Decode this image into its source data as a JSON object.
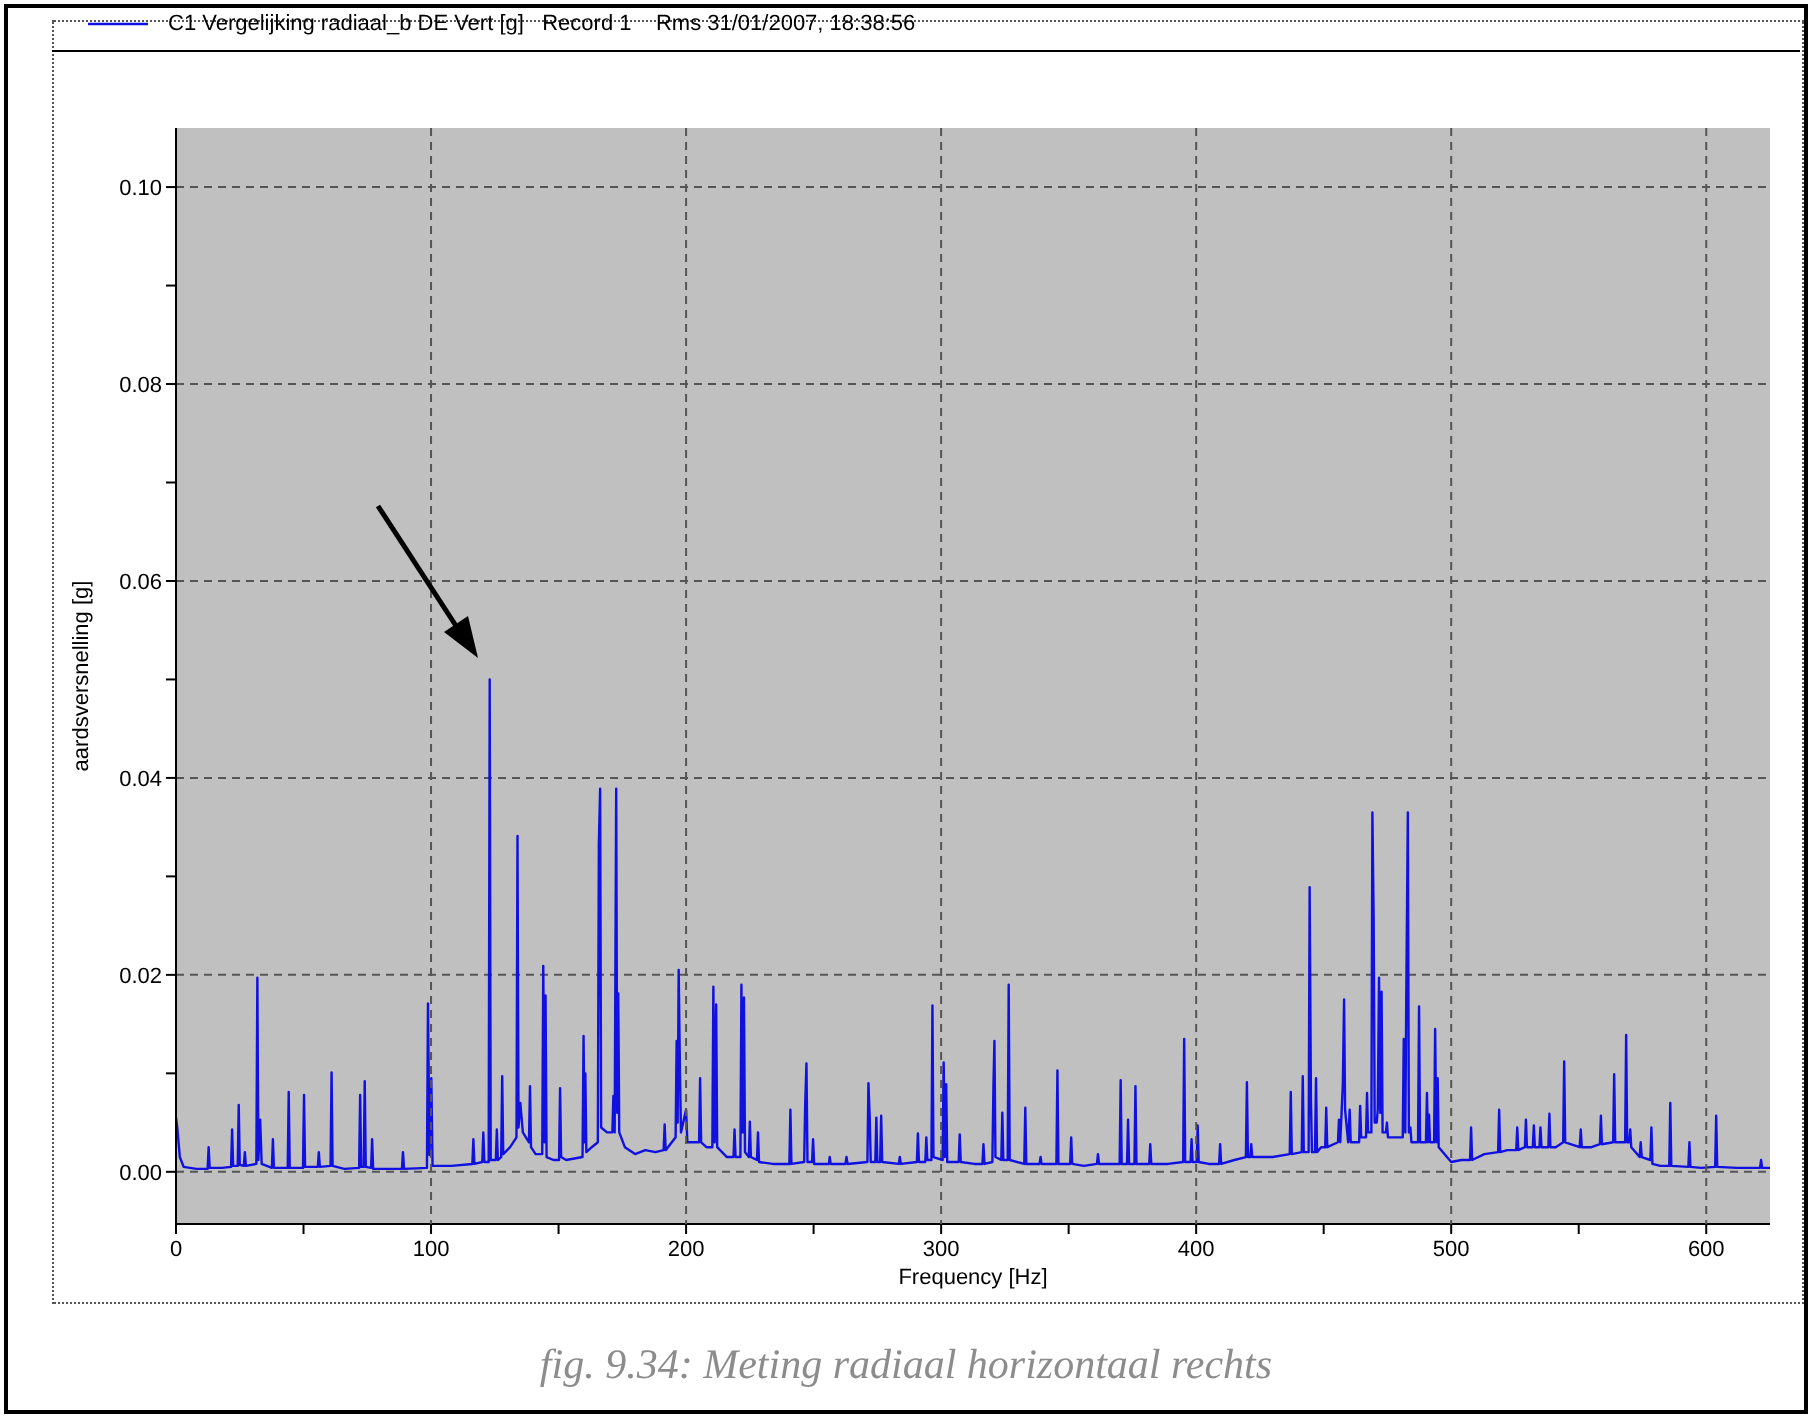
{
  "chart_data": {
    "type": "line",
    "xlabel": "Frequency [Hz]",
    "ylabel": "aardsversnelling [g]",
    "annotations": [
      "fig. 9.34: Meting radiaal horizontaal rechts"
    ],
    "xlim": [
      0,
      625
    ],
    "ylim": [
      -0.0053,
      0.106
    ],
    "xticks": [
      0,
      {
        "value": 50,
        "label": null
      },
      100,
      {
        "value": 150,
        "label": null
      },
      200,
      {
        "value": 250,
        "label": null
      },
      300,
      {
        "value": 350,
        "label": null
      },
      400,
      {
        "value": 450,
        "label": null
      },
      500,
      {
        "value": 550,
        "label": null
      },
      600
    ],
    "yticks": [
      {
        "value": 0,
        "label": "0.00"
      },
      {
        "value": 0.01,
        "label": null
      },
      {
        "value": 0.02,
        "label": "0.02"
      },
      {
        "value": 0.03,
        "label": null
      },
      {
        "value": 0.04,
        "label": "0.04"
      },
      {
        "value": 0.05,
        "label": null
      },
      {
        "value": 0.06,
        "label": "0.06"
      },
      {
        "value": 0.07,
        "label": null
      },
      {
        "value": 0.08,
        "label": "0.08"
      },
      {
        "value": 0.09,
        "label": null
      },
      {
        "value": 0.1,
        "label": "0.10"
      }
    ],
    "grid": true,
    "legend": "top left",
    "marker": "none",
    "line_style": "solid",
    "series": [
      {
        "name": "C1 Vergelijking radiaal_b DE Vert [g]   Record 1    Rms 31/01/2007, 18:38:56",
        "color": "#1010e0",
        "x": [
          0,
          0.5,
          1.5,
          3,
          8,
          12.4,
          12.8,
          13.2,
          18,
          21.6,
          22,
          22.4,
          24.2,
          24.6,
          25,
          26.6,
          27,
          27.4,
          31.5,
          31.9,
          32.3,
          33,
          33.6,
          37.6,
          38,
          38.4,
          43.8,
          44.2,
          44.6,
          49.8,
          50.2,
          50.6,
          55.6,
          56,
          56.4,
          60.6,
          61,
          61.4,
          66,
          71.8,
          72.2,
          72.6,
          73.6,
          74,
          74.4,
          76.5,
          76.9,
          77.3,
          85,
          88.6,
          89,
          89.4,
          98.4,
          98.8,
          99.4,
          100.1,
          100.6,
          108,
          116.2,
          116.6,
          117,
          120.1,
          120.5,
          120.9,
          122.6,
          123,
          123.4,
          125.4,
          125.8,
          126.2,
          127.5,
          127.9,
          128.3,
          131,
          133.5,
          133.9,
          134.3,
          135,
          136,
          138.4,
          138.8,
          139.2,
          141,
          143.6,
          144,
          144.5,
          144.9,
          145.3,
          148,
          150.2,
          150.6,
          151,
          153,
          159.4,
          159.8,
          160.2,
          160.5,
          160.9,
          163,
          165.4,
          165.8,
          166.3,
          166.7,
          169,
          171.1,
          171.5,
          172,
          172.6,
          173,
          173.4,
          173.8,
          176,
          180,
          184,
          188,
          191.2,
          191.6,
          192,
          195.9,
          196.3,
          196.7,
          197.1,
          197.6,
          198,
          200,
          200.5,
          203,
          205.1,
          205.5,
          205.9,
          208,
          210.3,
          210.7,
          211.2,
          211.8,
          212.2,
          216,
          218.6,
          219,
          219.4,
          221.3,
          221.7,
          222.2,
          222.7,
          223.1,
          224.6,
          225,
          225.4,
          227.8,
          228.2,
          228.6,
          234,
          240.5,
          240.9,
          241.3,
          246.3,
          246.7,
          247.2,
          247.6,
          249.4,
          249.8,
          250.2,
          256,
          256.3,
          256.7,
          262.5,
          262.9,
          263.3,
          271.1,
          271.5,
          272,
          272.4,
          274.2,
          274.6,
          275,
          276.1,
          276.5,
          276.9,
          283.4,
          283.8,
          284.2,
          290.5,
          290.9,
          291.3,
          293.8,
          294.2,
          294.6,
          296.2,
          296.6,
          297,
          300.6,
          301,
          301.5,
          302,
          302.4,
          306.9,
          307.3,
          307.7,
          313,
          316.2,
          316.6,
          317,
          320.1,
          320.5,
          320.9,
          321.3,
          323.6,
          324,
          324.4,
          326.1,
          326.5,
          326.9,
          332.6,
          333,
          333.4,
          338.6,
          339,
          339.4,
          345.2,
          345.6,
          346,
          350.6,
          351,
          351.4,
          356,
          361.1,
          361.5,
          361.9,
          370,
          370.4,
          370.8,
          372.9,
          373.3,
          373.7,
          375.8,
          376.2,
          376.6,
          381.6,
          382,
          382.4,
          389,
          394.9,
          395.3,
          395.7,
          397.8,
          398.2,
          398.6,
          400.2,
          400.6,
          401,
          405,
          409,
          409.4,
          409.8,
          415,
          419.5,
          419.9,
          420.3,
          421.2,
          421.6,
          422,
          430,
          436.7,
          437.1,
          437.5,
          441.4,
          441.8,
          442.2,
          444.1,
          444.5,
          445,
          445.4,
          446.6,
          447,
          447.4,
          449,
          450.6,
          451,
          451.4,
          455.6,
          456,
          456.5,
          457.5,
          458,
          458.4,
          459.6,
          460.2,
          460.6,
          463.9,
          464.3,
          464.7,
          466.6,
          467,
          467.4,
          468.7,
          469.1,
          469.6,
          470,
          470.8,
          471.2,
          471.7,
          472.2,
          472.7,
          473.1,
          474.4,
          474.8,
          475.2,
          478,
          481,
          481.4,
          482,
          482.4,
          483,
          483.4,
          484,
          484.4,
          487,
          487.4,
          487.8,
          490.1,
          490.5,
          490.9,
          491.3,
          491.7,
          493.3,
          493.7,
          494.2,
          494.7,
          495.1,
          500,
          504,
          507.4,
          507.8,
          508.2,
          513,
          518.4,
          518.8,
          519.2,
          522,
          525.5,
          525.9,
          526.3,
          528.9,
          529.3,
          529.7,
          532,
          532.4,
          532.8,
          534.6,
          535,
          535.4,
          538.1,
          538.5,
          538.9,
          541,
          543.9,
          544.3,
          544.7,
          550.4,
          550.8,
          551.2,
          555,
          558.3,
          558.7,
          559.1,
          563.5,
          563.9,
          564.3,
          568.2,
          568.6,
          569,
          569.8,
          570.2,
          570.6,
          573.9,
          574.3,
          574.7,
          578.1,
          578.5,
          578.9,
          582,
          585.5,
          585.9,
          586.3,
          593,
          593.4,
          593.8,
          598,
          603.5,
          603.9,
          604.3,
          612,
          621.1,
          621.5,
          621.9,
          625
        ],
        "values": [
          0.0055,
          0.0045,
          0.0015,
          0.0005,
          0.0003,
          0.0003,
          0.0025,
          0.0004,
          0.0004,
          0.0005,
          0.0043,
          0.0006,
          0.0006,
          0.0068,
          0.0007,
          0.0006,
          0.002,
          0.0006,
          0.0008,
          0.0197,
          0.0012,
          0.0053,
          0.0008,
          0.0004,
          0.0033,
          0.0004,
          0.0004,
          0.0081,
          0.0004,
          0.0004,
          0.0078,
          0.0005,
          0.0005,
          0.002,
          0.0005,
          0.0006,
          0.0101,
          0.0006,
          0.0003,
          0.0004,
          0.0078,
          0.0005,
          0.0005,
          0.0092,
          0.0005,
          0.0004,
          0.0033,
          0.0003,
          0.0003,
          0.0003,
          0.002,
          0.0003,
          0.0004,
          0.0171,
          0.0017,
          0.0095,
          0.0006,
          0.0006,
          0.0008,
          0.0033,
          0.0008,
          0.001,
          0.004,
          0.001,
          0.001,
          0.05,
          0.0012,
          0.0012,
          0.0043,
          0.0012,
          0.0015,
          0.0097,
          0.0018,
          0.0025,
          0.0035,
          0.0341,
          0.0045,
          0.007,
          0.004,
          0.003,
          0.0087,
          0.0025,
          0.0018,
          0.0018,
          0.0209,
          0.003,
          0.0179,
          0.0015,
          0.0012,
          0.0012,
          0.0085,
          0.0015,
          0.0012,
          0.0015,
          0.0138,
          0.003,
          0.01,
          0.002,
          0.0025,
          0.003,
          0.0333,
          0.0389,
          0.0045,
          0.004,
          0.004,
          0.0077,
          0.004,
          0.0389,
          0.006,
          0.0181,
          0.004,
          0.0025,
          0.0018,
          0.0022,
          0.002,
          0.0022,
          0.0048,
          0.0022,
          0.0035,
          0.0133,
          0.005,
          0.0205,
          0.01,
          0.004,
          0.0063,
          0.003,
          0.003,
          0.003,
          0.0095,
          0.003,
          0.0025,
          0.0025,
          0.0188,
          0.003,
          0.017,
          0.0025,
          0.0015,
          0.0015,
          0.0043,
          0.0015,
          0.0015,
          0.019,
          0.004,
          0.0177,
          0.002,
          0.0015,
          0.0051,
          0.0015,
          0.0012,
          0.004,
          0.001,
          0.0008,
          0.0008,
          0.0063,
          0.0008,
          0.001,
          0.0068,
          0.011,
          0.001,
          0.001,
          0.0033,
          0.0008,
          0.0008,
          0.0015,
          0.0008,
          0.0008,
          0.0015,
          0.0008,
          0.001,
          0.009,
          0.0055,
          0.001,
          0.001,
          0.0055,
          0.001,
          0.001,
          0.0057,
          0.001,
          0.0008,
          0.0015,
          0.0008,
          0.001,
          0.0039,
          0.001,
          0.001,
          0.0035,
          0.0012,
          0.0012,
          0.0169,
          0.0015,
          0.0012,
          0.0111,
          0.0015,
          0.0089,
          0.001,
          0.001,
          0.0038,
          0.001,
          0.0008,
          0.0008,
          0.0028,
          0.0008,
          0.001,
          0.0085,
          0.0133,
          0.0015,
          0.0012,
          0.006,
          0.0012,
          0.0012,
          0.019,
          0.0012,
          0.0008,
          0.0065,
          0.0008,
          0.0008,
          0.0015,
          0.0008,
          0.0008,
          0.0103,
          0.0008,
          0.0008,
          0.0035,
          0.0008,
          0.0006,
          0.0008,
          0.0018,
          0.0008,
          0.0008,
          0.0093,
          0.0008,
          0.0008,
          0.0053,
          0.0008,
          0.0008,
          0.0087,
          0.0008,
          0.0008,
          0.0028,
          0.0008,
          0.0008,
          0.001,
          0.0135,
          0.001,
          0.001,
          0.0033,
          0.001,
          0.001,
          0.0047,
          0.001,
          0.0008,
          0.0008,
          0.0028,
          0.0008,
          0.0012,
          0.0015,
          0.0091,
          0.0015,
          0.0015,
          0.0028,
          0.0015,
          0.0015,
          0.0018,
          0.0081,
          0.0018,
          0.002,
          0.0097,
          0.002,
          0.002,
          0.0289,
          0.0073,
          0.002,
          0.002,
          0.0095,
          0.002,
          0.0025,
          0.0025,
          0.0065,
          0.0025,
          0.003,
          0.0053,
          0.003,
          0.0088,
          0.0175,
          0.0063,
          0.003,
          0.0063,
          0.003,
          0.003,
          0.0067,
          0.0035,
          0.0035,
          0.008,
          0.004,
          0.004,
          0.0365,
          0.0255,
          0.005,
          0.005,
          0.0063,
          0.0197,
          0.006,
          0.0183,
          0.004,
          0.004,
          0.005,
          0.0035,
          0.0035,
          0.0035,
          0.0135,
          0.004,
          0.0183,
          0.0365,
          0.004,
          0.0045,
          0.003,
          0.003,
          0.0168,
          0.003,
          0.003,
          0.008,
          0.003,
          0.0058,
          0.003,
          0.003,
          0.0145,
          0.003,
          0.0095,
          0.0025,
          0.001,
          0.0012,
          0.0012,
          0.0045,
          0.0012,
          0.0018,
          0.002,
          0.0063,
          0.002,
          0.0022,
          0.0022,
          0.0045,
          0.0022,
          0.0025,
          0.0053,
          0.0025,
          0.0025,
          0.0047,
          0.0025,
          0.0025,
          0.0045,
          0.0025,
          0.0025,
          0.0059,
          0.0025,
          0.0025,
          0.003,
          0.0112,
          0.003,
          0.0025,
          0.0043,
          0.0025,
          0.0025,
          0.0028,
          0.0057,
          0.0028,
          0.003,
          0.0099,
          0.003,
          0.003,
          0.0139,
          0.003,
          0.003,
          0.0043,
          0.0025,
          0.0015,
          0.003,
          0.0015,
          0.0012,
          0.0045,
          0.0008,
          0.0006,
          0.0006,
          0.007,
          0.0006,
          0.0005,
          0.003,
          0.0005,
          0.0004,
          0.0005,
          0.0057,
          0.0005,
          0.0004,
          0.0004,
          0.0012,
          0.0004,
          0.0004
        ]
      }
    ]
  }
}
